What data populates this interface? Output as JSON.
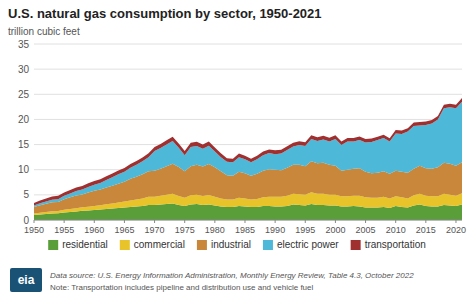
{
  "chart_data": {
    "type": "area",
    "stacked": true,
    "title": "U.S. natural gas consumption by sector, 1950-2021",
    "ylabel": "trillion cubic feet",
    "source": "Data source: U.S. Energy Information Administration, Monthly Energy Review, Table 4.3, October 2022",
    "note": "Note: Transportation includes pipeline and distribution use and vehicle fuel",
    "logo_text": "eia",
    "x": [
      1950,
      1951,
      1952,
      1953,
      1954,
      1955,
      1956,
      1957,
      1958,
      1959,
      1960,
      1961,
      1962,
      1963,
      1964,
      1965,
      1966,
      1967,
      1968,
      1969,
      1970,
      1971,
      1972,
      1973,
      1974,
      1975,
      1976,
      1977,
      1978,
      1979,
      1980,
      1981,
      1982,
      1983,
      1984,
      1985,
      1986,
      1987,
      1988,
      1989,
      1990,
      1991,
      1992,
      1993,
      1994,
      1995,
      1996,
      1997,
      1998,
      1999,
      2000,
      2001,
      2002,
      2003,
      2004,
      2005,
      2006,
      2007,
      2008,
      2009,
      2010,
      2011,
      2012,
      2013,
      2014,
      2015,
      2016,
      2017,
      2018,
      2019,
      2020,
      2021
    ],
    "series": [
      {
        "name": "residential",
        "color": "#5a9e3a",
        "values": [
          1.0,
          1.1,
          1.2,
          1.3,
          1.35,
          1.5,
          1.6,
          1.7,
          1.85,
          1.9,
          2.0,
          2.1,
          2.2,
          2.3,
          2.4,
          2.5,
          2.6,
          2.7,
          2.8,
          3.0,
          3.0,
          3.1,
          3.2,
          3.3,
          3.0,
          2.8,
          3.1,
          3.2,
          3.0,
          3.1,
          2.9,
          2.7,
          2.6,
          2.6,
          2.8,
          2.7,
          2.6,
          2.6,
          2.8,
          2.8,
          2.7,
          2.7,
          2.8,
          3.1,
          3.0,
          2.9,
          3.2,
          3.0,
          3.0,
          2.9,
          2.9,
          2.7,
          2.7,
          2.8,
          2.7,
          2.5,
          2.5,
          2.5,
          2.6,
          2.4,
          2.8,
          2.6,
          2.5,
          2.9,
          3.1,
          2.8,
          2.7,
          2.7,
          3.0,
          2.9,
          2.8,
          3.1
        ]
      },
      {
        "name": "commercial",
        "color": "#e8c42a",
        "values": [
          0.3,
          0.35,
          0.4,
          0.45,
          0.45,
          0.55,
          0.6,
          0.65,
          0.7,
          0.75,
          0.8,
          0.85,
          0.95,
          1.0,
          1.1,
          1.2,
          1.3,
          1.4,
          1.5,
          1.6,
          1.6,
          1.7,
          1.8,
          1.9,
          1.75,
          1.6,
          1.8,
          1.8,
          1.75,
          1.85,
          1.7,
          1.6,
          1.5,
          1.5,
          1.6,
          1.6,
          1.5,
          1.6,
          1.7,
          1.8,
          1.9,
          1.9,
          2.0,
          2.1,
          2.1,
          2.1,
          2.3,
          2.2,
          2.2,
          2.1,
          2.1,
          2.0,
          2.0,
          2.0,
          2.1,
          2.0,
          1.9,
          1.9,
          2.0,
          1.9,
          1.9,
          1.9,
          1.8,
          2.0,
          2.1,
          2.0,
          2.0,
          2.0,
          2.2,
          2.1,
          2.0,
          2.2
        ]
      },
      {
        "name": "industrial",
        "color": "#c8873a",
        "values": [
          1.3,
          1.5,
          1.65,
          1.8,
          1.8,
          2.1,
          2.3,
          2.5,
          2.5,
          2.8,
          3.0,
          3.1,
          3.3,
          3.5,
          3.7,
          3.9,
          4.3,
          4.5,
          4.8,
          5.1,
          5.2,
          5.4,
          5.7,
          6.0,
          5.8,
          5.3,
          5.8,
          6.0,
          5.9,
          6.2,
          5.9,
          5.4,
          4.8,
          4.7,
          5.2,
          5.0,
          4.7,
          5.0,
          5.3,
          5.5,
          5.4,
          5.3,
          5.6,
          5.8,
          5.9,
          5.7,
          6.2,
          6.1,
          6.2,
          6.0,
          5.8,
          5.1,
          5.3,
          5.4,
          5.5,
          5.1,
          4.9,
          5.0,
          5.1,
          4.9,
          5.1,
          5.1,
          5.1,
          5.3,
          5.6,
          5.5,
          5.5,
          5.8,
          6.2,
          6.2,
          6.0,
          6.2
        ]
      },
      {
        "name": "electric power",
        "color": "#4db8d8",
        "values": [
          0.3,
          0.4,
          0.45,
          0.5,
          0.55,
          0.65,
          0.75,
          0.9,
          1.0,
          1.1,
          1.2,
          1.3,
          1.5,
          1.7,
          1.9,
          2.0,
          2.2,
          2.4,
          2.6,
          2.8,
          3.9,
          4.1,
          4.3,
          4.5,
          3.8,
          3.2,
          3.8,
          3.7,
          3.5,
          3.6,
          3.1,
          2.8,
          2.7,
          2.7,
          2.9,
          2.8,
          2.7,
          2.9,
          3.1,
          3.2,
          3.1,
          3.3,
          3.5,
          3.6,
          3.9,
          4.0,
          4.4,
          4.4,
          4.6,
          4.6,
          5.3,
          5.1,
          5.6,
          5.4,
          5.6,
          5.8,
          6.2,
          6.5,
          6.6,
          6.4,
          7.4,
          7.5,
          8.2,
          8.5,
          8.0,
          8.6,
          9.0,
          9.5,
          10.8,
          11.2,
          11.4,
          12.0
        ]
      },
      {
        "name": "transportation",
        "color": "#a03030",
        "values": [
          0.5,
          0.55,
          0.6,
          0.6,
          0.65,
          0.65,
          0.7,
          0.7,
          0.7,
          0.75,
          0.75,
          0.75,
          0.75,
          0.75,
          0.75,
          0.75,
          0.75,
          0.75,
          0.75,
          0.75,
          0.8,
          0.8,
          0.85,
          0.85,
          0.85,
          0.8,
          0.85,
          0.85,
          0.85,
          0.85,
          0.8,
          0.75,
          0.7,
          0.7,
          0.7,
          0.7,
          0.7,
          0.7,
          0.7,
          0.7,
          0.75,
          0.75,
          0.75,
          0.75,
          0.75,
          0.75,
          0.75,
          0.75,
          0.75,
          0.75,
          0.75,
          0.7,
          0.7,
          0.7,
          0.7,
          0.7,
          0.7,
          0.65,
          0.65,
          0.65,
          0.7,
          0.7,
          0.65,
          0.7,
          0.7,
          0.7,
          0.7,
          0.7,
          0.7,
          0.7,
          0.7,
          0.75
        ]
      }
    ],
    "xlim": [
      1950,
      2021
    ],
    "xticks": [
      1950,
      1955,
      1960,
      1965,
      1970,
      1975,
      1980,
      1985,
      1990,
      1995,
      2000,
      2005,
      2010,
      2015,
      2020
    ],
    "ylim": [
      0,
      35
    ],
    "yticks": [
      0,
      5,
      10,
      15,
      20,
      25,
      30,
      35
    ],
    "grid": true,
    "legend": "bottom"
  }
}
